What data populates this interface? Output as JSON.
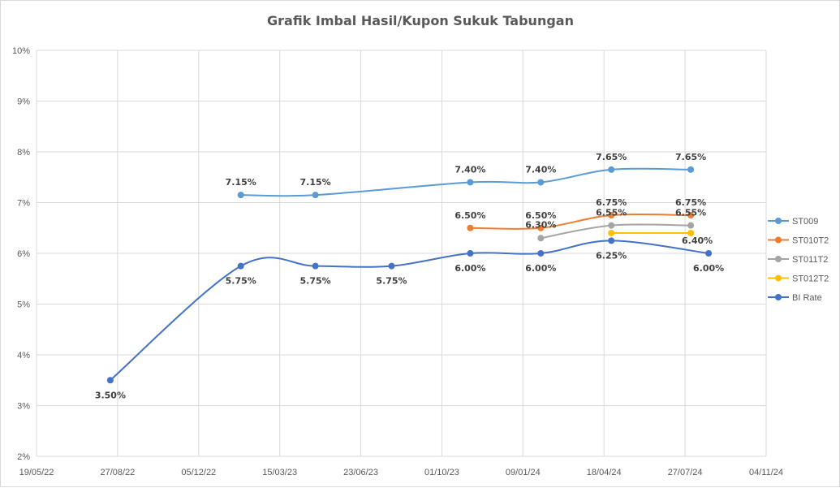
{
  "chart_data": {
    "type": "line",
    "title": "Grafik Imbal Hasil/Kupon Sukuk Tabungan",
    "xlabel": "",
    "ylabel": "",
    "x_axis": {
      "min": "2022-05-19",
      "max": "2024-11-04",
      "tick_dates": [
        "2022-05-19",
        "2022-08-27",
        "2022-12-05",
        "2023-03-15",
        "2023-06-23",
        "2023-10-01",
        "2024-01-09",
        "2024-04-18",
        "2024-07-27",
        "2024-11-04"
      ],
      "tick_labels": [
        "19/05/22",
        "27/08/22",
        "05/12/22",
        "15/03/23",
        "23/06/23",
        "01/10/23",
        "09/01/24",
        "18/04/24",
        "27/07/24",
        "04/11/24"
      ]
    },
    "y_axis": {
      "min": 2,
      "max": 10,
      "step": 1,
      "tick_labels": [
        "2%",
        "3%",
        "4%",
        "5%",
        "6%",
        "7%",
        "8%",
        "9%",
        "10%"
      ]
    },
    "grid": true,
    "legend_position": "right",
    "series": [
      {
        "name": "ST009",
        "color": "#5B9BD5",
        "points": [
          {
            "x": "2023-01-26",
            "y": 7.15,
            "label": "7.15%"
          },
          {
            "x": "2023-04-28",
            "y": 7.15,
            "label": "7.15%"
          },
          {
            "x": "2023-11-05",
            "y": 7.4,
            "label": "7.40%"
          },
          {
            "x": "2024-01-31",
            "y": 7.4,
            "label": "7.40%"
          },
          {
            "x": "2024-04-27",
            "y": 7.65,
            "label": "7.65%"
          },
          {
            "x": "2024-08-03",
            "y": 7.65,
            "label": "7.65%"
          }
        ]
      },
      {
        "name": "ST010T2",
        "color": "#ED7D31",
        "points": [
          {
            "x": "2023-11-05",
            "y": 6.5,
            "label": "6.50%"
          },
          {
            "x": "2024-01-31",
            "y": 6.5,
            "label": "6.50%"
          },
          {
            "x": "2024-04-27",
            "y": 6.75,
            "label": "6.75%"
          },
          {
            "x": "2024-08-03",
            "y": 6.75,
            "label": "6.75%"
          }
        ]
      },
      {
        "name": "ST011T2",
        "color": "#A5A5A5",
        "points": [
          {
            "x": "2024-01-31",
            "y": 6.3,
            "label": "6.30%"
          },
          {
            "x": "2024-04-27",
            "y": 6.55,
            "label": "6.55%"
          },
          {
            "x": "2024-08-03",
            "y": 6.55,
            "label": "6.55%"
          }
        ]
      },
      {
        "name": "ST012T2",
        "color": "#FFC000",
        "points": [
          {
            "x": "2024-04-27",
            "y": 6.4,
            "label": ""
          },
          {
            "x": "2024-08-03",
            "y": 6.4,
            "label": "6.40%"
          }
        ]
      },
      {
        "name": "BI Rate",
        "color": "#4472C4",
        "points": [
          {
            "x": "2022-08-18",
            "y": 3.5,
            "label": "3.50%"
          },
          {
            "x": "2023-01-26",
            "y": 5.75,
            "label": "5.75%"
          },
          {
            "x": "2023-04-28",
            "y": 5.75,
            "label": "5.75%"
          },
          {
            "x": "2023-07-31",
            "y": 5.75,
            "label": "5.75%"
          },
          {
            "x": "2023-11-05",
            "y": 6.0,
            "label": "6.00%"
          },
          {
            "x": "2024-01-31",
            "y": 6.0,
            "label": "6.00%"
          },
          {
            "x": "2024-04-27",
            "y": 6.25,
            "label": "6.25%"
          },
          {
            "x": "2024-08-25",
            "y": 6.0,
            "label": "6.00%"
          }
        ]
      }
    ]
  }
}
